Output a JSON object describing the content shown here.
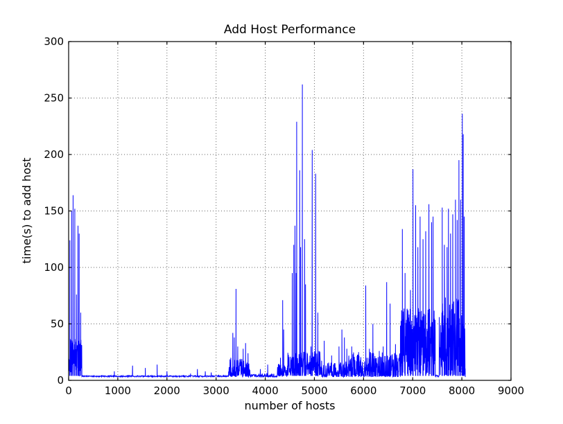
{
  "chart_data": {
    "type": "line",
    "title": "Add Host Performance",
    "xlabel": "number of hosts",
    "ylabel": "time(s) to add host",
    "xlim": [
      0,
      9000
    ],
    "ylim": [
      0,
      300
    ],
    "xticks": [
      0,
      1000,
      2000,
      3000,
      4000,
      5000,
      6000,
      7000,
      8000,
      9000
    ],
    "yticks": [
      0,
      50,
      100,
      150,
      200,
      250,
      300
    ],
    "grid": true,
    "grid_style": "dotted",
    "legend": "none",
    "line_color": "#0000ff",
    "axis_color": "#000000",
    "grid_color": "#666666",
    "background_color": "#ffffff",
    "data_end_x": 8070,
    "baseline": 3,
    "noise_regions": [
      {
        "x0": 0,
        "x1": 270,
        "base": 4,
        "amp": 34,
        "pow": 1.0,
        "step": 3
      },
      {
        "x0": 270,
        "x1": 3250,
        "base": 3,
        "amp": 1.2,
        "pow": 1.0,
        "step": 6
      },
      {
        "x0": 3250,
        "x1": 3700,
        "base": 3,
        "amp": 16,
        "pow": 1.4,
        "step": 4
      },
      {
        "x0": 3700,
        "x1": 4250,
        "base": 3,
        "amp": 3,
        "pow": 2.0,
        "step": 6
      },
      {
        "x0": 4250,
        "x1": 4460,
        "base": 3,
        "amp": 12,
        "pow": 1.5,
        "step": 4
      },
      {
        "x0": 4460,
        "x1": 5150,
        "base": 4,
        "amp": 22,
        "pow": 1.3,
        "step": 4
      },
      {
        "x0": 5150,
        "x1": 5700,
        "base": 3,
        "amp": 14,
        "pow": 2.2,
        "step": 5
      },
      {
        "x0": 5700,
        "x1": 6750,
        "base": 3,
        "amp": 22,
        "pow": 2.2,
        "step": 4
      },
      {
        "x0": 6750,
        "x1": 7460,
        "base": 4,
        "amp": 60,
        "pow": 1.2,
        "step": 3
      },
      {
        "x0": 7460,
        "x1": 7540,
        "base": 3,
        "amp": 2,
        "pow": 1.0,
        "step": 6
      },
      {
        "x0": 7540,
        "x1": 8070,
        "base": 4,
        "amp": 70,
        "pow": 1.1,
        "step": 3
      }
    ],
    "spikes": [
      [
        25,
        124
      ],
      [
        60,
        150
      ],
      [
        90,
        164
      ],
      [
        125,
        152
      ],
      [
        160,
        76
      ],
      [
        190,
        137
      ],
      [
        215,
        130
      ],
      [
        245,
        60
      ],
      [
        930,
        8
      ],
      [
        1300,
        13
      ],
      [
        1560,
        11
      ],
      [
        1800,
        14
      ],
      [
        2000,
        8
      ],
      [
        2480,
        6
      ],
      [
        2620,
        10
      ],
      [
        2780,
        8
      ],
      [
        2900,
        7
      ],
      [
        3050,
        5
      ],
      [
        3300,
        20
      ],
      [
        3340,
        42
      ],
      [
        3370,
        38
      ],
      [
        3405,
        81
      ],
      [
        3440,
        30
      ],
      [
        3550,
        28
      ],
      [
        3600,
        33
      ],
      [
        3650,
        24
      ],
      [
        3900,
        10
      ],
      [
        4050,
        14
      ],
      [
        4310,
        20
      ],
      [
        4355,
        71
      ],
      [
        4375,
        45
      ],
      [
        4550,
        95
      ],
      [
        4580,
        120
      ],
      [
        4605,
        137
      ],
      [
        4630,
        95
      ],
      [
        4640,
        229
      ],
      [
        4700,
        186
      ],
      [
        4720,
        118
      ],
      [
        4755,
        262
      ],
      [
        4800,
        125
      ],
      [
        4820,
        85
      ],
      [
        4930,
        30
      ],
      [
        4955,
        204
      ],
      [
        5025,
        183
      ],
      [
        5070,
        60
      ],
      [
        5200,
        35
      ],
      [
        5350,
        22
      ],
      [
        5500,
        30
      ],
      [
        5560,
        45
      ],
      [
        5610,
        38
      ],
      [
        5660,
        28
      ],
      [
        5760,
        30
      ],
      [
        5900,
        25
      ],
      [
        6045,
        84
      ],
      [
        6120,
        28
      ],
      [
        6190,
        50
      ],
      [
        6320,
        26
      ],
      [
        6400,
        30
      ],
      [
        6470,
        87
      ],
      [
        6540,
        68
      ],
      [
        6650,
        32
      ],
      [
        6790,
        134
      ],
      [
        6845,
        95
      ],
      [
        6905,
        62
      ],
      [
        6955,
        80
      ],
      [
        7006,
        187
      ],
      [
        7060,
        155
      ],
      [
        7105,
        118
      ],
      [
        7150,
        145
      ],
      [
        7210,
        125
      ],
      [
        7265,
        132
      ],
      [
        7330,
        156
      ],
      [
        7385,
        140
      ],
      [
        7415,
        145
      ],
      [
        7600,
        153
      ],
      [
        7645,
        120
      ],
      [
        7700,
        118
      ],
      [
        7727,
        152
      ],
      [
        7770,
        130
      ],
      [
        7815,
        147
      ],
      [
        7870,
        160
      ],
      [
        7905,
        142
      ],
      [
        7940,
        195
      ],
      [
        7975,
        160
      ],
      [
        8010,
        236
      ],
      [
        8028,
        218
      ],
      [
        8048,
        145
      ]
    ]
  }
}
